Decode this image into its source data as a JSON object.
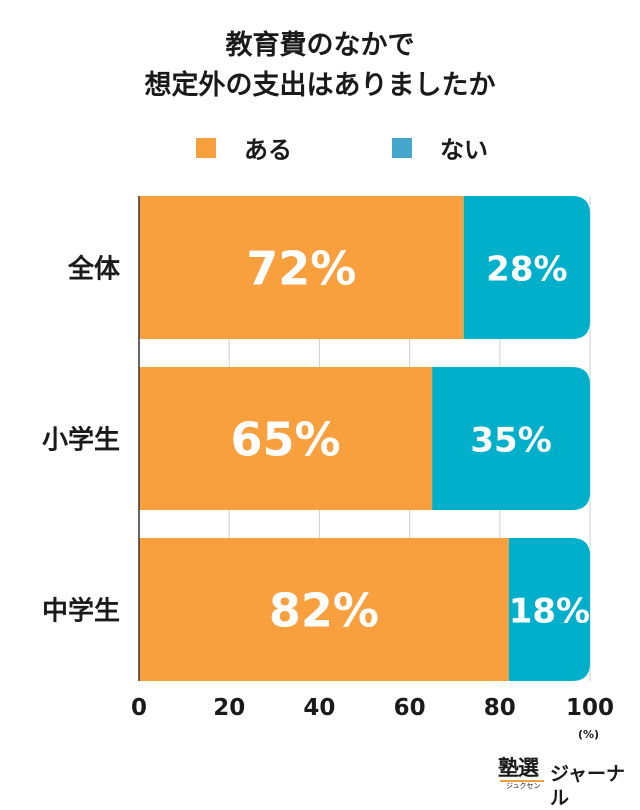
{
  "title": {
    "line1": "教育費のなかで",
    "line2": "想定外の支出はありましたか"
  },
  "colors": {
    "aru": "#f8a03d",
    "nai": "#00b0cb",
    "legend_nai": "#46a7cc",
    "grid": "#cfcfcf",
    "text": "#1a1a1a"
  },
  "axis_unit": "(%)",
  "logo": {
    "kanji": "塾選",
    "ruby": "ジュクセン",
    "name": "ジャーナル"
  },
  "chart_data": {
    "type": "bar",
    "orientation": "horizontal",
    "stacked": true,
    "title": "教育費のなかで想定外の支出はありましたか",
    "categories": [
      "全体",
      "小学生",
      "中学生"
    ],
    "series": [
      {
        "name": "ある",
        "values": [
          72,
          65,
          82
        ],
        "labels": [
          "72%",
          "65%",
          "82%"
        ]
      },
      {
        "name": "ない",
        "values": [
          28,
          35,
          18
        ],
        "labels": [
          "28%",
          "35%",
          "18%"
        ]
      }
    ],
    "xlim": [
      0,
      100
    ],
    "xticks": [
      0,
      20,
      40,
      60,
      80,
      100
    ],
    "xtick_labels": [
      "0",
      "20",
      "40",
      "60",
      "80",
      "100"
    ],
    "xlabel": "(%)",
    "ylabel": "",
    "grid": true,
    "legend_position": "top-center"
  }
}
